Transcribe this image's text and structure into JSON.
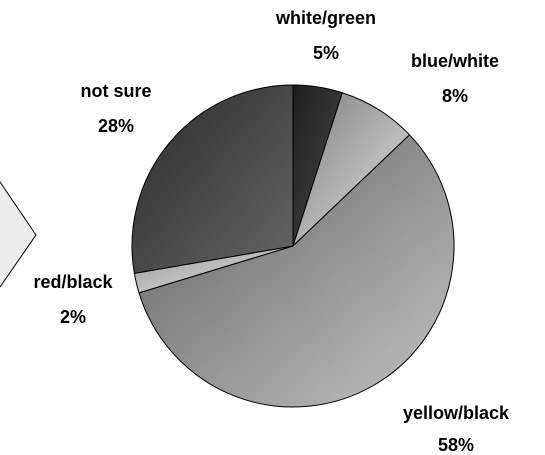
{
  "chart_data": {
    "type": "pie",
    "title": "",
    "slices": [
      {
        "label": "white/green",
        "value": 5,
        "value_label": "5%",
        "color_dark": "#1e1e1e",
        "color_light": "#4a4a4a"
      },
      {
        "label": "blue/white",
        "value": 8,
        "value_label": "8%",
        "color_dark": "#7c7c7c",
        "color_light": "#e6e6e6"
      },
      {
        "label": "yellow/black",
        "value": 58,
        "value_label": "58%",
        "color_dark": "#5f5f5f",
        "color_light": "#c2c2c2"
      },
      {
        "label": "red/black",
        "value": 2,
        "value_label": "2%",
        "color_dark": "#9a9a9a",
        "color_light": "#e2e2e2"
      },
      {
        "label": "not sure",
        "value": 28,
        "value_label": "28%",
        "color_dark": "#2a2a2a",
        "color_light": "#666666"
      }
    ],
    "start_angle_deg": 0,
    "direction": "clockwise",
    "legend": "none",
    "callout_arrow_fill": "#ececec"
  }
}
